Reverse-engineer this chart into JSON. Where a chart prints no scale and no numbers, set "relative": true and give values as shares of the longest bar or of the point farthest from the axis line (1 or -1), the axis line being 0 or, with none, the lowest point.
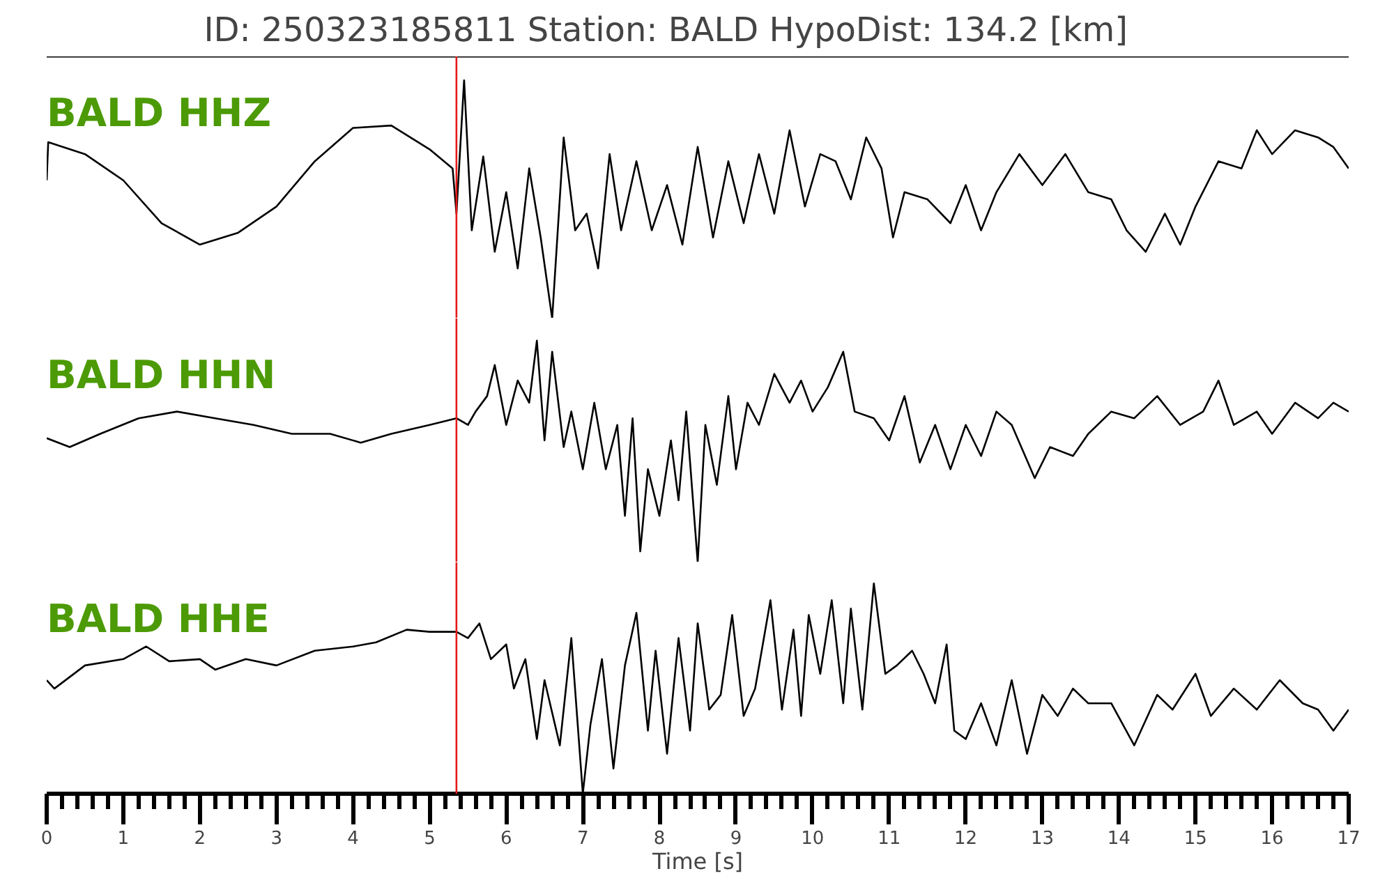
{
  "chart_data": [
    {
      "type": "line",
      "relative": true,
      "title": "ID: 250323185811   Station: BALD   HypoDist:   134.2 [km]",
      "xlim": [
        0,
        17
      ],
      "tick_labels": false,
      "grid": false,
      "series": [
        {
          "name": "BALD HHZ",
          "color": "#000000",
          "x": [
            0,
            0.02,
            0.5,
            1,
            1.5,
            2,
            2.5,
            3,
            3.5,
            4,
            4.5,
            5,
            5.3,
            5.35,
            5.45,
            5.55,
            5.7,
            5.85,
            6.0,
            6.15,
            6.3,
            6.45,
            6.6,
            6.75,
            6.9,
            7.05,
            7.2,
            7.35,
            7.5,
            7.7,
            7.9,
            8.1,
            8.3,
            8.5,
            8.7,
            8.9,
            9.1,
            9.3,
            9.5,
            9.7,
            9.9,
            10.1,
            10.3,
            10.5,
            10.7,
            10.9,
            11.05,
            11.2,
            11.5,
            11.8,
            12.0,
            12.2,
            12.4,
            12.7,
            13.0,
            13.3,
            13.6,
            13.9,
            14.1,
            14.35,
            14.6,
            14.8,
            15.0,
            15.3,
            15.6,
            15.8,
            16.0,
            16.3,
            16.6,
            16.8,
            17.0
          ],
          "values": [
            0.58,
            0.74,
            0.69,
            0.58,
            0.4,
            0.31,
            0.36,
            0.47,
            0.66,
            0.8,
            0.81,
            0.71,
            0.63,
            0.44,
            1.0,
            0.37,
            0.68,
            0.28,
            0.53,
            0.21,
            0.63,
            0.34,
            0,
            0.76,
            0.37,
            0.44,
            0.21,
            0.69,
            0.37,
            0.66,
            0.37,
            0.56,
            0.31,
            0.72,
            0.34,
            0.66,
            0.4,
            0.69,
            0.44,
            0.79,
            0.47,
            0.69,
            0.66,
            0.5,
            0.76,
            0.63,
            0.34,
            0.53,
            0.5,
            0.4,
            0.56,
            0.37,
            0.53,
            0.69,
            0.56,
            0.69,
            0.53,
            0.5,
            0.37,
            0.28,
            0.44,
            0.31,
            0.47,
            0.66,
            0.63,
            0.79,
            0.69,
            0.79,
            0.76,
            0.72,
            0.63
          ]
        }
      ],
      "ref_lines": [
        {
          "axis": "x",
          "value": 5.35,
          "color": "#e41a1c"
        }
      ]
    },
    {
      "type": "line",
      "relative": true,
      "xlim": [
        0,
        17
      ],
      "tick_labels": false,
      "grid": false,
      "series": [
        {
          "name": "BALD HHN",
          "color": "#000000",
          "x": [
            0,
            0.3,
            0.7,
            1.2,
            1.7,
            2.2,
            2.7,
            3.2,
            3.7,
            4.1,
            4.5,
            5.0,
            5.35,
            5.5,
            5.6,
            5.75,
            5.85,
            6.0,
            6.15,
            6.3,
            6.4,
            6.5,
            6.6,
            6.75,
            6.85,
            7.0,
            7.15,
            7.3,
            7.45,
            7.55,
            7.65,
            7.75,
            7.85,
            8.0,
            8.15,
            8.25,
            8.35,
            8.5,
            8.6,
            8.75,
            8.9,
            9.0,
            9.15,
            9.3,
            9.5,
            9.7,
            9.85,
            10.0,
            10.2,
            10.4,
            10.55,
            10.8,
            11.0,
            11.2,
            11.4,
            11.6,
            11.8,
            12.0,
            12.2,
            12.4,
            12.6,
            12.9,
            13.1,
            13.4,
            13.6,
            13.9,
            14.2,
            14.5,
            14.8,
            15.1,
            15.3,
            15.5,
            15.8,
            16.0,
            16.3,
            16.6,
            16.8,
            17.0
          ],
          "values": [
            0.56,
            0.52,
            0.58,
            0.65,
            0.68,
            0.65,
            0.62,
            0.58,
            0.58,
            0.54,
            0.58,
            0.62,
            0.65,
            0.62,
            0.68,
            0.75,
            0.89,
            0.62,
            0.82,
            0.72,
            1.0,
            0.55,
            0.95,
            0.52,
            0.68,
            0.42,
            0.72,
            0.42,
            0.62,
            0.21,
            0.65,
            0.05,
            0.42,
            0.21,
            0.55,
            0.28,
            0.68,
            0,
            0.62,
            0.35,
            0.75,
            0.42,
            0.72,
            0.62,
            0.85,
            0.72,
            0.82,
            0.68,
            0.79,
            0.95,
            0.68,
            0.65,
            0.55,
            0.75,
            0.45,
            0.62,
            0.42,
            0.62,
            0.48,
            0.68,
            0.62,
            0.38,
            0.52,
            0.48,
            0.58,
            0.68,
            0.65,
            0.75,
            0.62,
            0.68,
            0.82,
            0.62,
            0.68,
            0.58,
            0.72,
            0.65,
            0.72,
            0.68
          ]
        }
      ],
      "ref_lines": [
        {
          "axis": "x",
          "value": 5.35,
          "color": "#e41a1c"
        }
      ]
    },
    {
      "type": "line",
      "relative": true,
      "xlabel": "Time [s]",
      "xlim": [
        0,
        17
      ],
      "xticks": [
        0,
        1,
        2,
        3,
        4,
        5,
        6,
        7,
        8,
        9,
        10,
        11,
        12,
        13,
        14,
        15,
        16,
        17
      ],
      "tick_labels": "x",
      "grid": false,
      "series": [
        {
          "name": "BALD HHE",
          "color": "#000000",
          "x": [
            0,
            0.1,
            0.5,
            1.0,
            1.3,
            1.6,
            2.0,
            2.2,
            2.6,
            3.0,
            3.5,
            4.0,
            4.3,
            4.7,
            5.0,
            5.35,
            5.5,
            5.65,
            5.8,
            6.0,
            6.1,
            6.25,
            6.4,
            6.5,
            6.7,
            6.85,
            7.0,
            7.1,
            7.25,
            7.4,
            7.55,
            7.7,
            7.85,
            7.95,
            8.1,
            8.25,
            8.4,
            8.5,
            8.65,
            8.8,
            8.95,
            9.1,
            9.25,
            9.45,
            9.6,
            9.75,
            9.85,
            9.95,
            10.1,
            10.25,
            10.4,
            10.5,
            10.65,
            10.8,
            10.95,
            11.1,
            11.3,
            11.45,
            11.6,
            11.75,
            11.85,
            12.0,
            12.2,
            12.4,
            12.6,
            12.8,
            13.0,
            13.2,
            13.4,
            13.6,
            13.9,
            14.2,
            14.5,
            14.7,
            15.0,
            15.2,
            15.5,
            15.8,
            16.1,
            16.4,
            16.6,
            16.8,
            17.0
          ],
          "values": [
            0.54,
            0.5,
            0.61,
            0.64,
            0.7,
            0.63,
            0.64,
            0.59,
            0.64,
            0.61,
            0.68,
            0.7,
            0.72,
            0.78,
            0.77,
            0.77,
            0.74,
            0.81,
            0.64,
            0.71,
            0.5,
            0.64,
            0.26,
            0.54,
            0.23,
            0.74,
            0,
            0.33,
            0.64,
            0.12,
            0.61,
            0.86,
            0.3,
            0.68,
            0.19,
            0.74,
            0.3,
            0.81,
            0.4,
            0.47,
            0.85,
            0.37,
            0.5,
            0.92,
            0.4,
            0.78,
            0.37,
            0.85,
            0.57,
            0.92,
            0.43,
            0.88,
            0.4,
            1.0,
            0.57,
            0.61,
            0.68,
            0.57,
            0.43,
            0.71,
            0.3,
            0.26,
            0.43,
            0.23,
            0.54,
            0.19,
            0.47,
            0.37,
            0.5,
            0.43,
            0.43,
            0.23,
            0.47,
            0.4,
            0.57,
            0.37,
            0.5,
            0.4,
            0.54,
            0.43,
            0.4,
            0.3,
            0.4
          ]
        }
      ],
      "ref_lines": [
        {
          "axis": "x",
          "value": 5.35,
          "color": "#e41a1c"
        }
      ]
    }
  ]
}
